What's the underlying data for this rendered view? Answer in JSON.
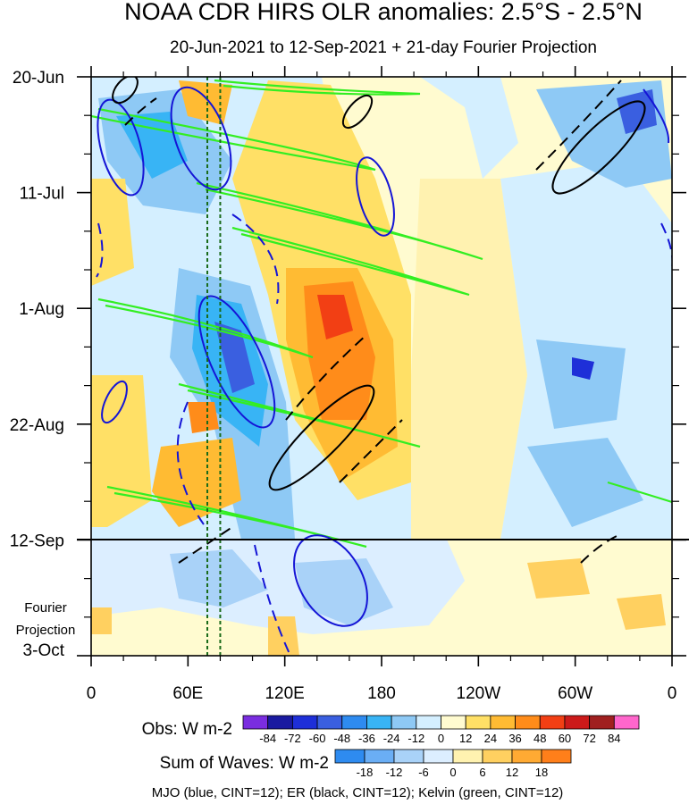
{
  "chart_data": {
    "type": "heatmap",
    "title": "NOAA CDR HIRS OLR anomalies: 2.5°S - 2.5°N",
    "subtitle": "20-Jun-2021 to 12-Sep-2021 + 21-day Fourier Projection",
    "x_ticks": [
      "0",
      "60E",
      "120E",
      "180",
      "120W",
      "60W",
      "0"
    ],
    "x_range_deg_east": [
      0,
      360
    ],
    "y_ticks": [
      "20-Jun",
      "11-Jul",
      "1-Aug",
      "22-Aug",
      "12-Sep",
      "3-Oct"
    ],
    "time_range": [
      "20-Jun-2021",
      "3-Oct-2021"
    ],
    "observation_end": "12-Sep",
    "projection_label": [
      "Fourier",
      "Projection"
    ],
    "reference_lines_lon": [
      72,
      80
    ],
    "obs_colorbar": {
      "label": "Obs: W m-2",
      "levels": [
        "-84",
        "-72",
        "-60",
        "-48",
        "-36",
        "-24",
        "-12",
        "0",
        "12",
        "24",
        "36",
        "48",
        "60",
        "72",
        "84"
      ],
      "colors": [
        "#7a2de0",
        "#1a1aa0",
        "#1e2fd8",
        "#3a5fe0",
        "#2e8bf0",
        "#38b4f5",
        "#8ec9f5",
        "#d4efff",
        "#fffbd0",
        "#ffe066",
        "#ffbb33",
        "#ff8c1a",
        "#f23f14",
        "#cc1a1a",
        "#a02020",
        "#ff66cc"
      ]
    },
    "waves_colorbar": {
      "label": "Sum of Waves: W m-2",
      "levels": [
        "-18",
        "-12",
        "-6",
        "0",
        "6",
        "12",
        "18"
      ],
      "colors": [
        "#2e8bf0",
        "#6aaef5",
        "#a9d2f8",
        "#dceeff",
        "#fff2b0",
        "#ffd060",
        "#ffaa33",
        "#ff7f1a"
      ]
    },
    "contours": "MJO (blue, CINT=12); ER (black, CINT=12); Kelvin (green, CINT=12)",
    "series": [
      {
        "name": "MJO",
        "color": "#1515d6"
      },
      {
        "name": "ER",
        "color": "#000000"
      },
      {
        "name": "Kelvin",
        "color": "#33ee22"
      }
    ]
  }
}
